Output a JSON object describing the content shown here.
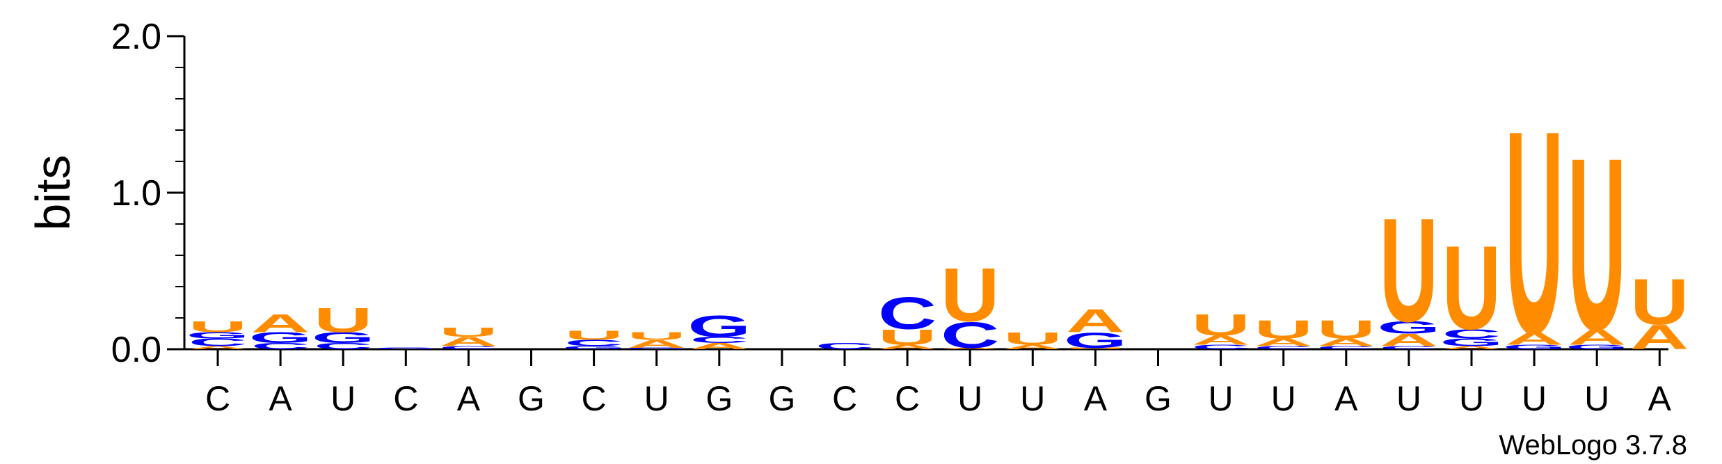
{
  "chart_data": {
    "type": "sequence-logo",
    "title": "",
    "xlabel": "",
    "ylabel": "bits",
    "ylim": [
      0,
      2.0
    ],
    "y_ticks": [
      "0.0",
      "1.0",
      "2.0"
    ],
    "colors": {
      "U": "#ff8c00",
      "A": "#ff8c00",
      "C": "#0000ff",
      "G": "#0000ff"
    },
    "positions": [
      {
        "label": "C",
        "stack": [
          {
            "letter": "A",
            "value": 0.02
          },
          {
            "letter": "C",
            "value": 0.05
          },
          {
            "letter": "G",
            "value": 0.04
          },
          {
            "letter": "U",
            "value": 0.07
          }
        ]
      },
      {
        "label": "A",
        "stack": [
          {
            "letter": "C",
            "value": 0.04
          },
          {
            "letter": "G",
            "value": 0.07
          },
          {
            "letter": "A",
            "value": 0.12
          }
        ]
      },
      {
        "label": "U",
        "stack": [
          {
            "letter": "C",
            "value": 0.04
          },
          {
            "letter": "G",
            "value": 0.07
          },
          {
            "letter": "U",
            "value": 0.16
          }
        ]
      },
      {
        "label": "C",
        "stack": [
          {
            "letter": "G",
            "value": 0.01
          }
        ]
      },
      {
        "label": "A",
        "stack": [
          {
            "letter": "C",
            "value": 0.02
          },
          {
            "letter": "A",
            "value": 0.06
          },
          {
            "letter": "U",
            "value": 0.06
          }
        ]
      },
      {
        "label": "G",
        "stack": []
      },
      {
        "label": "C",
        "stack": [
          {
            "letter": "G",
            "value": 0.02
          },
          {
            "letter": "C",
            "value": 0.04
          },
          {
            "letter": "U",
            "value": 0.06
          }
        ]
      },
      {
        "label": "U",
        "stack": [
          {
            "letter": "G",
            "value": 0.01
          },
          {
            "letter": "A",
            "value": 0.05
          },
          {
            "letter": "U",
            "value": 0.05
          }
        ]
      },
      {
        "label": "G",
        "stack": [
          {
            "letter": "A",
            "value": 0.04
          },
          {
            "letter": "C",
            "value": 0.04
          },
          {
            "letter": "G",
            "value": 0.14
          }
        ]
      },
      {
        "label": "G",
        "stack": []
      },
      {
        "label": "C",
        "stack": [
          {
            "letter": "C",
            "value": 0.04
          }
        ]
      },
      {
        "label": "C",
        "stack": [
          {
            "letter": "A",
            "value": 0.03
          },
          {
            "letter": "U",
            "value": 0.1
          },
          {
            "letter": "C",
            "value": 0.21
          }
        ]
      },
      {
        "label": "U",
        "stack": [
          {
            "letter": "A",
            "value": 0.01
          },
          {
            "letter": "C",
            "value": 0.17
          },
          {
            "letter": "U",
            "value": 0.35
          }
        ]
      },
      {
        "label": "U",
        "stack": [
          {
            "letter": "A",
            "value": 0.03
          },
          {
            "letter": "U",
            "value": 0.08
          }
        ]
      },
      {
        "label": "A",
        "stack": [
          {
            "letter": "U",
            "value": 0.01
          },
          {
            "letter": "G",
            "value": 0.1
          },
          {
            "letter": "A",
            "value": 0.15
          }
        ]
      },
      {
        "label": "G",
        "stack": []
      },
      {
        "label": "U",
        "stack": [
          {
            "letter": "C",
            "value": 0.03
          },
          {
            "letter": "A",
            "value": 0.06
          },
          {
            "letter": "U",
            "value": 0.14
          }
        ]
      },
      {
        "label": "U",
        "stack": [
          {
            "letter": "C",
            "value": 0.02
          },
          {
            "letter": "A",
            "value": 0.05
          },
          {
            "letter": "U",
            "value": 0.12
          }
        ]
      },
      {
        "label": "A",
        "stack": [
          {
            "letter": "C",
            "value": 0.02
          },
          {
            "letter": "A",
            "value": 0.05
          },
          {
            "letter": "U",
            "value": 0.12
          }
        ]
      },
      {
        "label": "U",
        "stack": [
          {
            "letter": "C",
            "value": 0.02
          },
          {
            "letter": "A",
            "value": 0.08
          },
          {
            "letter": "G",
            "value": 0.08
          },
          {
            "letter": "U",
            "value": 0.68
          }
        ]
      },
      {
        "label": "U",
        "stack": [
          {
            "letter": "A",
            "value": 0.02
          },
          {
            "letter": "G",
            "value": 0.05
          },
          {
            "letter": "C",
            "value": 0.06
          },
          {
            "letter": "U",
            "value": 0.55
          }
        ]
      },
      {
        "label": "U",
        "stack": [
          {
            "letter": "G",
            "value": 0.03
          },
          {
            "letter": "A",
            "value": 0.08
          },
          {
            "letter": "U",
            "value": 1.33
          }
        ]
      },
      {
        "label": "U",
        "stack": [
          {
            "letter": "G",
            "value": 0.03
          },
          {
            "letter": "A",
            "value": 0.1
          },
          {
            "letter": "U",
            "value": 1.13
          }
        ]
      },
      {
        "label": "A",
        "stack": [
          {
            "letter": "A",
            "value": 0.16
          },
          {
            "letter": "U",
            "value": 0.3
          }
        ]
      }
    ]
  },
  "credit": "WebLogo 3.7.8"
}
